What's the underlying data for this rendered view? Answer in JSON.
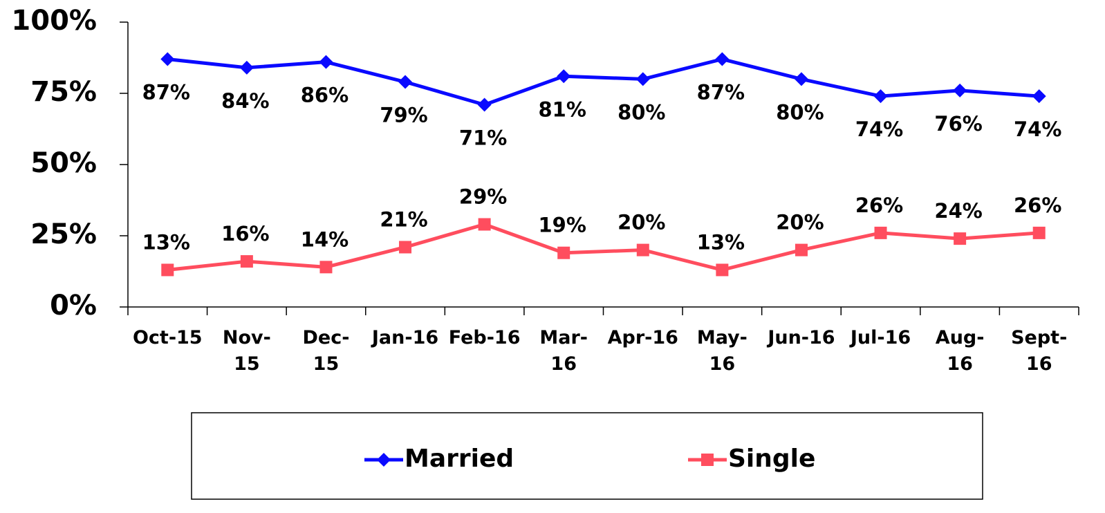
{
  "chart_data": {
    "type": "line",
    "categories": [
      "Oct-15",
      "Nov-15",
      "Dec-15",
      "Jan-16",
      "Feb-16",
      "Mar-16",
      "Apr-16",
      "May-16",
      "Jun-16",
      "Jul-16",
      "Aug-16",
      "Sept-16"
    ],
    "series": [
      {
        "name": "Married",
        "color": "#0a0aff",
        "marker": "diamond",
        "values": [
          87,
          84,
          86,
          79,
          71,
          81,
          80,
          87,
          80,
          74,
          76,
          74
        ],
        "value_labels": [
          "87%",
          "84%",
          "86%",
          "79%",
          "71%",
          "81%",
          "80%",
          "87%",
          "80%",
          "74%",
          "76%",
          "74%"
        ]
      },
      {
        "name": "Single",
        "color": "#ff4d5e",
        "marker": "square",
        "values": [
          13,
          16,
          14,
          21,
          29,
          19,
          20,
          13,
          20,
          26,
          24,
          26
        ],
        "value_labels": [
          "13%",
          "16%",
          "14%",
          "21%",
          "29%",
          "19%",
          "20%",
          "13%",
          "20%",
          "26%",
          "24%",
          "26%"
        ]
      }
    ],
    "ylim": [
      0,
      100
    ],
    "yticks": [
      {
        "value": 0,
        "label": "0%"
      },
      {
        "value": 25,
        "label": "25%"
      },
      {
        "value": 50,
        "label": "50%"
      },
      {
        "value": 75,
        "label": "75%"
      },
      {
        "value": 100,
        "label": "100%"
      }
    ],
    "grid": false,
    "legend": "bottom"
  }
}
